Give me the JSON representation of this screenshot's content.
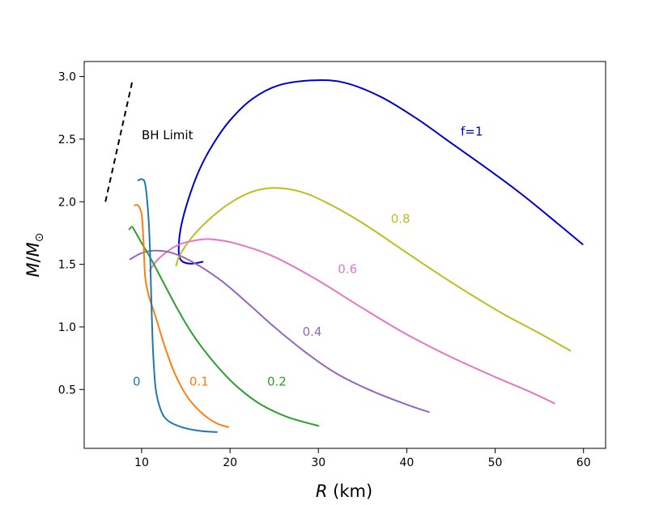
{
  "chart_data": {
    "type": "line",
    "xlabel": "R (km)",
    "ylabel": "M/M⊙",
    "xlim": [
      3.5,
      62.5
    ],
    "ylim": [
      0.03,
      3.12
    ],
    "xticks": [
      10,
      20,
      30,
      40,
      50,
      60
    ],
    "yticks": [
      0.5,
      1.0,
      1.5,
      2.0,
      2.5,
      3.0
    ],
    "ytick_labels": [
      "0.5",
      "1.0",
      "1.5",
      "2.0",
      "2.5",
      "3.0"
    ],
    "grid": false,
    "annotations": {
      "bh_limit": "BH Limit",
      "bh_limit_line": [
        [
          5.9,
          2.0
        ],
        [
          9.0,
          2.98
        ]
      ]
    },
    "series": [
      {
        "name": "f=1",
        "label": "f=1",
        "color": "#0000cc",
        "label_at": [
          46.1,
          2.53
        ],
        "points": [
          [
            16.9,
            1.52
          ],
          [
            15.5,
            1.505
          ],
          [
            14.5,
            1.53
          ],
          [
            14.2,
            1.6
          ],
          [
            14.4,
            1.78
          ],
          [
            15.2,
            2.0
          ],
          [
            16.5,
            2.25
          ],
          [
            18,
            2.45
          ],
          [
            20,
            2.65
          ],
          [
            22.5,
            2.82
          ],
          [
            25.5,
            2.93
          ],
          [
            29.5,
            2.97
          ],
          [
            33,
            2.95
          ],
          [
            37,
            2.84
          ],
          [
            41,
            2.67
          ],
          [
            45,
            2.47
          ],
          [
            49,
            2.27
          ],
          [
            53,
            2.06
          ],
          [
            57,
            1.83
          ],
          [
            59.9,
            1.66
          ]
        ]
      },
      {
        "name": "f=0.8",
        "label": "0.8",
        "color": "#bcbd22",
        "label_at": [
          38.2,
          1.83
        ],
        "points": [
          [
            13.9,
            1.49
          ],
          [
            14.3,
            1.57
          ],
          [
            15.5,
            1.7
          ],
          [
            17.5,
            1.85
          ],
          [
            20,
            1.99
          ],
          [
            22.5,
            2.08
          ],
          [
            25,
            2.11
          ],
          [
            28,
            2.08
          ],
          [
            31,
            1.99
          ],
          [
            35,
            1.83
          ],
          [
            39,
            1.64
          ],
          [
            43,
            1.45
          ],
          [
            47,
            1.27
          ],
          [
            51,
            1.1
          ],
          [
            55,
            0.95
          ],
          [
            58.5,
            0.81
          ]
        ]
      },
      {
        "name": "f=0.6",
        "label": "0.6",
        "color": "#e377c2",
        "label_at": [
          32.2,
          1.43
        ],
        "points": [
          [
            10.9,
            1.45
          ],
          [
            12,
            1.55
          ],
          [
            14,
            1.65
          ],
          [
            16,
            1.69
          ],
          [
            18,
            1.7
          ],
          [
            21,
            1.66
          ],
          [
            25,
            1.56
          ],
          [
            30,
            1.37
          ],
          [
            35,
            1.15
          ],
          [
            40,
            0.94
          ],
          [
            45,
            0.76
          ],
          [
            50,
            0.6
          ],
          [
            54,
            0.48
          ],
          [
            56.7,
            0.39
          ]
        ]
      },
      {
        "name": "f=0.4",
        "label": "0.4",
        "color": "#9467bd",
        "label_at": [
          28.2,
          0.93
        ],
        "points": [
          [
            8.7,
            1.54
          ],
          [
            10,
            1.59
          ],
          [
            11.5,
            1.61
          ],
          [
            13.5,
            1.59
          ],
          [
            16,
            1.51
          ],
          [
            19,
            1.37
          ],
          [
            22,
            1.19
          ],
          [
            25,
            1.0
          ],
          [
            28.5,
            0.8
          ],
          [
            32,
            0.63
          ],
          [
            36,
            0.49
          ],
          [
            40,
            0.38
          ],
          [
            42.5,
            0.32
          ]
        ]
      },
      {
        "name": "f=0.2",
        "label": "0.2",
        "color": "#2ca02c",
        "label_at": [
          24.2,
          0.53
        ],
        "points": [
          [
            8.6,
            1.78
          ],
          [
            8.9,
            1.8
          ],
          [
            9.2,
            1.77
          ],
          [
            10,
            1.67
          ],
          [
            11,
            1.55
          ],
          [
            12.5,
            1.35
          ],
          [
            14,
            1.15
          ],
          [
            15.5,
            0.97
          ],
          [
            17,
            0.82
          ],
          [
            19,
            0.65
          ],
          [
            21,
            0.51
          ],
          [
            23.5,
            0.38
          ],
          [
            26.5,
            0.28
          ],
          [
            30,
            0.21
          ]
        ]
      },
      {
        "name": "f=0.1",
        "label": "0.1",
        "color": "#ff7f0e",
        "label_at": [
          15.4,
          0.53
        ],
        "points": [
          [
            9.2,
            1.97
          ],
          [
            9.6,
            1.97
          ],
          [
            10,
            1.9
          ],
          [
            10.2,
            1.7
          ],
          [
            10.4,
            1.4
          ],
          [
            10.8,
            1.25
          ],
          [
            11.5,
            1.1
          ],
          [
            12.5,
            0.87
          ],
          [
            13.5,
            0.67
          ],
          [
            14.5,
            0.52
          ],
          [
            15.5,
            0.41
          ],
          [
            17,
            0.3
          ],
          [
            18.5,
            0.23
          ],
          [
            19.8,
            0.2
          ]
        ]
      },
      {
        "name": "f=0",
        "label": "0",
        "color": "#1f77b4",
        "label_at": [
          9.0,
          0.53
        ],
        "points": [
          [
            9.6,
            2.17
          ],
          [
            10,
            2.18
          ],
          [
            10.4,
            2.14
          ],
          [
            10.75,
            1.9
          ],
          [
            10.95,
            1.6
          ],
          [
            11.1,
            1.2
          ],
          [
            11.3,
            0.8
          ],
          [
            11.6,
            0.5
          ],
          [
            12.2,
            0.33
          ],
          [
            13,
            0.25
          ],
          [
            14.5,
            0.2
          ],
          [
            16.5,
            0.17
          ],
          [
            18.5,
            0.16
          ]
        ]
      }
    ]
  }
}
